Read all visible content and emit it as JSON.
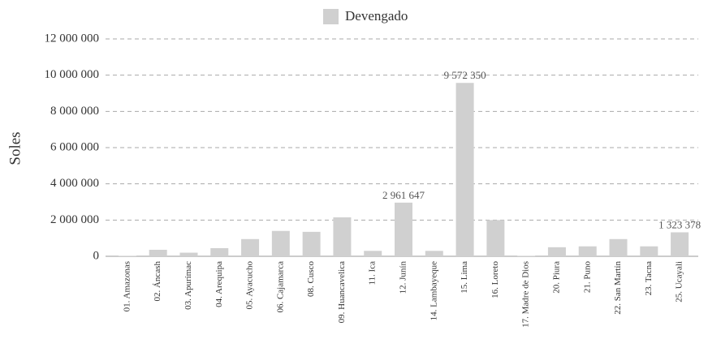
{
  "chart_data": {
    "type": "bar",
    "y_label": "Soles",
    "categories": [
      "01. Amazonas",
      "02. Áncash",
      "03. Apurímac",
      "04. Arequipa",
      "05. Ayacucho",
      "06. Cajamarca",
      "08. Cusco",
      "09. Huancavelica",
      "11. Ica",
      "12. Junín",
      "14. Lambayeque",
      "15. Lima",
      "16. Loreto",
      "17. Madre de Dios",
      "20. Piura",
      "21. Puno",
      "22. San Martín",
      "23. Tacna",
      "25. Ucayali"
    ],
    "series": [
      {
        "name": "Devengado",
        "color": "#d0d0d0",
        "values": [
          20000,
          360000,
          200000,
          450000,
          950000,
          1400000,
          1350000,
          2150000,
          300000,
          2961647,
          300000,
          9572350,
          2000000,
          20000,
          500000,
          550000,
          950000,
          550000,
          1323378
        ],
        "value_labels": [
          null,
          null,
          null,
          null,
          null,
          null,
          null,
          null,
          null,
          "2 961 647",
          null,
          "9 572 350",
          null,
          null,
          null,
          null,
          null,
          null,
          "1 323 378"
        ]
      }
    ],
    "ylim": [
      0,
      12000000
    ],
    "yticks": [
      0,
      {
        "value": 2000000,
        "label": "2 000 000"
      },
      {
        "value": 4000000,
        "label": "4 000 000"
      },
      {
        "value": 6000000,
        "label": "6 000 000"
      },
      {
        "value": 8000000,
        "label": "8 000 000"
      },
      {
        "value": 10000000,
        "label": "10 000 000"
      },
      {
        "value": 12000000,
        "label": "12 000 000"
      }
    ],
    "grid": true,
    "legend": "top"
  }
}
